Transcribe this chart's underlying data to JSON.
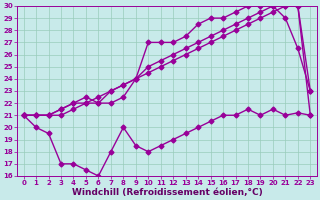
{
  "background_color": "#c8eaea",
  "line_color": "#990099",
  "grid_color": "#99ccbb",
  "xlabel": "Windchill (Refroidissement éolien,°C)",
  "xlabel_color": "#660066",
  "xlim": [
    -0.5,
    23.5
  ],
  "ylim": [
    16,
    30
  ],
  "xticks": [
    0,
    1,
    2,
    3,
    4,
    5,
    6,
    7,
    8,
    9,
    10,
    11,
    12,
    13,
    14,
    15,
    16,
    17,
    18,
    19,
    20,
    21,
    22,
    23
  ],
  "yticks": [
    16,
    17,
    18,
    19,
    20,
    21,
    22,
    23,
    24,
    25,
    26,
    27,
    28,
    29,
    30
  ],
  "lines": [
    {
      "x": [
        0,
        1,
        2,
        3,
        4,
        5,
        6,
        7,
        8,
        9,
        10,
        11,
        12,
        13,
        14,
        15,
        16,
        17,
        18,
        19,
        20,
        21,
        22,
        23
      ],
      "y": [
        21,
        20,
        19.5,
        17,
        17,
        16.5,
        16,
        18,
        20,
        18.5,
        18,
        18.5,
        19,
        19.5,
        20,
        20.5,
        21,
        21,
        21.5,
        21,
        21.5,
        21,
        21.2,
        21
      ]
    },
    {
      "x": [
        0,
        1,
        2,
        3,
        4,
        5,
        6,
        7,
        8,
        9,
        10,
        11,
        12,
        13,
        14,
        15,
        16,
        17,
        18,
        19,
        20,
        21,
        22,
        23
      ],
      "y": [
        21,
        21,
        21,
        21,
        21.5,
        22,
        22.5,
        23,
        23.5,
        24,
        24.5,
        25,
        25.5,
        26,
        26.5,
        27,
        27.5,
        28,
        28.5,
        29,
        29.5,
        30,
        30,
        21
      ]
    },
    {
      "x": [
        0,
        1,
        2,
        3,
        4,
        5,
        6,
        7,
        8,
        9,
        10,
        11,
        12,
        13,
        14,
        15,
        16,
        17,
        18,
        19,
        20,
        21,
        22,
        23
      ],
      "y": [
        21,
        21,
        21,
        21.5,
        22,
        22.5,
        22,
        22,
        22.5,
        24,
        27,
        27,
        27,
        27.5,
        28.5,
        29,
        29,
        29.5,
        30,
        30,
        30,
        29,
        26.5,
        23
      ]
    },
    {
      "x": [
        0,
        1,
        2,
        3,
        4,
        5,
        6,
        7,
        8,
        9,
        10,
        11,
        12,
        13,
        14,
        15,
        16,
        17,
        18,
        19,
        20,
        21,
        22,
        23
      ],
      "y": [
        21,
        21,
        21,
        21.5,
        22,
        22,
        22,
        23,
        23.5,
        24,
        25,
        25.5,
        26,
        26.5,
        27,
        27.5,
        28,
        28.5,
        29,
        29.5,
        30,
        30,
        30,
        23
      ]
    }
  ],
  "marker": "D",
  "marker_size": 2.5,
  "line_width": 1.0,
  "ytick_fontsize": 5.0,
  "xtick_fontsize": 5.0,
  "xlabel_fontsize": 6.5
}
